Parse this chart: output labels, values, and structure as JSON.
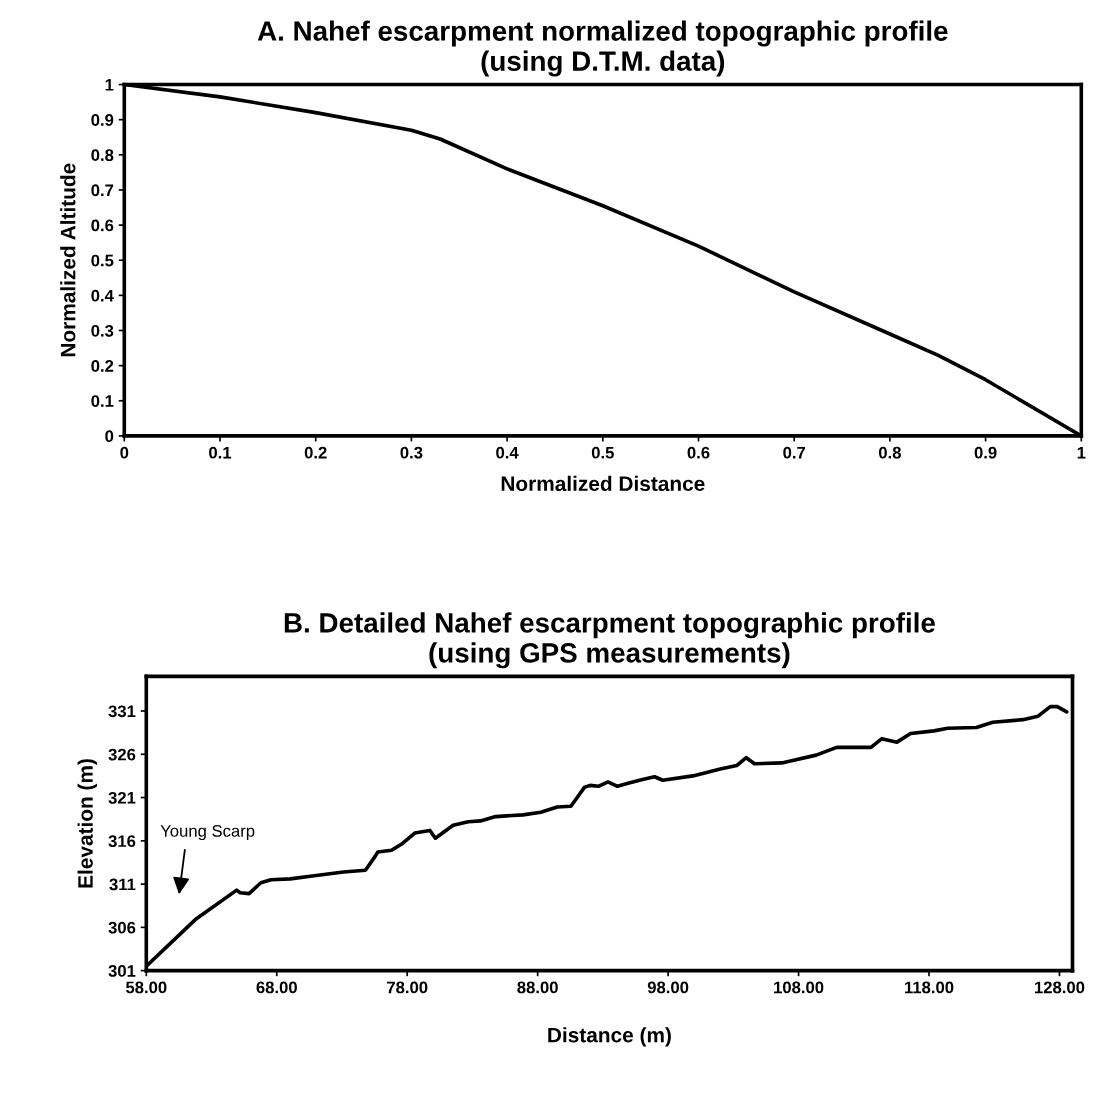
{
  "chart_data": [
    {
      "type": "line",
      "title": "A. Nahef escarpment normalized topographic profile\n(using D.T.M. data)",
      "xlabel": "Normalized Distance",
      "ylabel": "Normalized Altitude",
      "x": [
        0,
        0.1,
        0.2,
        0.3,
        0.33,
        0.4,
        0.5,
        0.6,
        0.7,
        0.8,
        0.85,
        0.9,
        1
      ],
      "series": [
        {
          "color": "#000000",
          "values": [
            1,
            0.965,
            0.92,
            0.87,
            0.845,
            0.76,
            0.655,
            0.54,
            0.41,
            0.29,
            0.23,
            0.16,
            0
          ]
        }
      ],
      "xlim": [
        0,
        1
      ],
      "ylim": [
        0,
        1
      ],
      "xticks": [
        0,
        0.1,
        0.2,
        0.3,
        0.4,
        0.5,
        0.6,
        0.7,
        0.8,
        0.9,
        1
      ],
      "yticks": [
        0,
        0.1,
        0.2,
        0.3,
        0.4,
        0.5,
        0.6,
        0.7,
        0.8,
        0.9,
        1
      ],
      "marker": "none",
      "line_style": "solid"
    },
    {
      "type": "line",
      "title": "B. Detailed Nahef escarpment topographic profile\n(using GPS measurements)",
      "xlabel": "Distance (m)",
      "ylabel": "Elevation (m)",
      "x": [
        58,
        61.76,
        64.93,
        65.19,
        65.88,
        66.78,
        67.56,
        69.03,
        71.02,
        73.12,
        74.8,
        75.54,
        75.75,
        76.8,
        77.64,
        78.58,
        79.74,
        80.16,
        81.52,
        82.68,
        83.62,
        84.78,
        86.88,
        88.24,
        89.5,
        90.55,
        91.6,
        92.02,
        92.65,
        93.39,
        94.12,
        95.07,
        96.12,
        96.96,
        97.59,
        99.9,
        102.0,
        103.26,
        103.99,
        104.62,
        106.72,
        109.35,
        110.92,
        113.55,
        114.39,
        115.54,
        116.59,
        118.38,
        119.43,
        121.63,
        122.89,
        125.2,
        126.36,
        127.3,
        127.83,
        128.56
      ],
      "series": [
        {
          "color": "#000000",
          "values": [
            301.5,
            306.9,
            310.3,
            310.0,
            309.9,
            311.15,
            311.5,
            311.6,
            312.0,
            312.4,
            312.6,
            314.2,
            314.7,
            314.9,
            315.7,
            316.9,
            317.2,
            316.3,
            317.8,
            318.2,
            318.3,
            318.8,
            319.0,
            319.3,
            319.9,
            320.0,
            322.2,
            322.4,
            322.3,
            322.8,
            322.3,
            322.7,
            323.1,
            323.4,
            323.0,
            323.5,
            324.3,
            324.7,
            325.6,
            324.9,
            325.0,
            325.9,
            326.8,
            326.8,
            327.8,
            327.4,
            328.4,
            328.7,
            329.0,
            329.1,
            329.7,
            330.0,
            330.4,
            331.5,
            331.5,
            330.9
          ]
        }
      ],
      "xlim": [
        58,
        129
      ],
      "ylim": [
        301,
        335
      ],
      "xticks": [
        {
          "value": 58,
          "label": "58.00"
        },
        {
          "value": 68,
          "label": "68.00"
        },
        {
          "value": 78,
          "label": "78.00"
        },
        {
          "value": 88,
          "label": "88.00"
        },
        {
          "value": 98,
          "label": "98.00"
        },
        {
          "value": 108,
          "label": "108.00"
        },
        {
          "value": 118,
          "label": "118.00"
        },
        {
          "value": 128,
          "label": "128.00"
        }
      ],
      "yticks": [
        301,
        306,
        311,
        316,
        321,
        326,
        331
      ],
      "marker": "none",
      "line_style": "solid",
      "annotations": [
        "Young Scarp"
      ]
    }
  ]
}
